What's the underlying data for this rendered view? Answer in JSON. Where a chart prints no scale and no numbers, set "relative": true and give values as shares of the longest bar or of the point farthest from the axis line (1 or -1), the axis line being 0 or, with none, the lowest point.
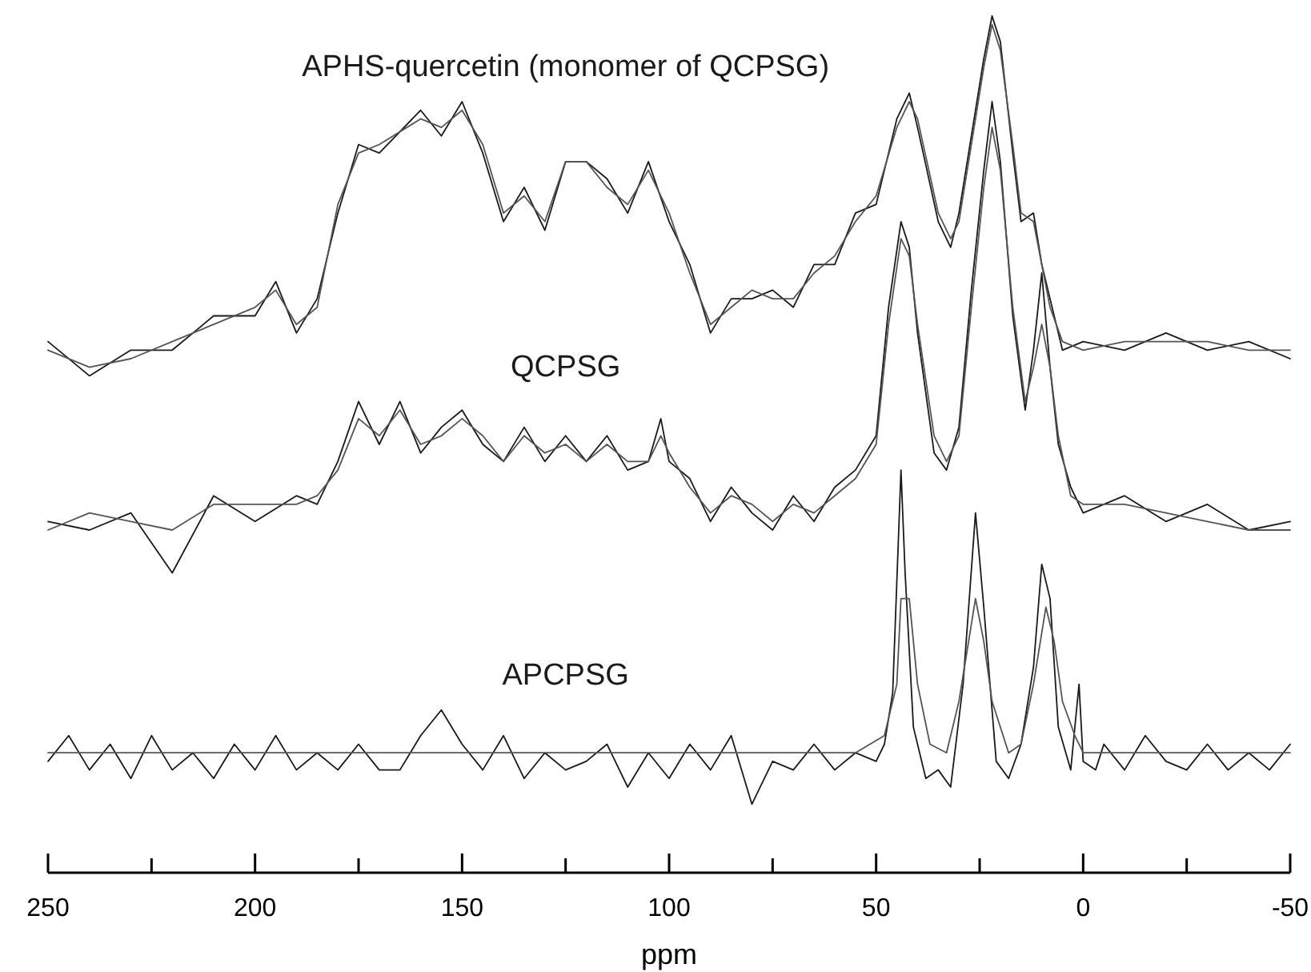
{
  "chart_data": {
    "type": "line",
    "relative": true,
    "xlabel": "ppm",
    "xlim": [
      250,
      -50
    ],
    "xticks": [
      250,
      {
        "value": 225,
        "label": null
      },
      200,
      {
        "value": 175,
        "label": null
      },
      150,
      {
        "value": 125,
        "label": null
      },
      100,
      {
        "value": 75,
        "label": null
      },
      50,
      {
        "value": 25,
        "label": null
      },
      0,
      {
        "value": -25,
        "label": null
      },
      -50
    ],
    "series": [
      {
        "name": "APHS-quercetin (monomer of QCPSG)",
        "color": "#1a1a1a",
        "x": [
          250,
          240,
          230,
          220,
          210,
          200,
          195,
          190,
          185,
          180,
          175,
          170,
          160,
          155,
          150,
          145,
          140,
          135,
          130,
          125,
          120,
          115,
          110,
          105,
          100,
          95,
          90,
          85,
          80,
          75,
          70,
          65,
          60,
          55,
          50,
          45,
          42,
          40,
          35,
          32,
          30,
          27,
          24,
          22,
          20,
          17,
          15,
          12,
          10,
          8,
          5,
          0,
          -10,
          -20,
          -30,
          -40,
          -50
        ],
        "values": [
          0.62,
          0.58,
          0.61,
          0.61,
          0.65,
          0.65,
          0.69,
          0.63,
          0.67,
          0.77,
          0.85,
          0.84,
          0.89,
          0.86,
          0.9,
          0.84,
          0.76,
          0.8,
          0.75,
          0.83,
          0.83,
          0.81,
          0.77,
          0.83,
          0.76,
          0.71,
          0.63,
          0.67,
          0.67,
          0.68,
          0.66,
          0.71,
          0.71,
          0.77,
          0.78,
          0.88,
          0.91,
          0.87,
          0.76,
          0.73,
          0.77,
          0.86,
          0.95,
          1.0,
          0.97,
          0.84,
          0.76,
          0.77,
          0.71,
          0.67,
          0.61,
          0.62,
          0.61,
          0.63,
          0.61,
          0.62,
          0.6
        ]
      },
      {
        "color": "#555555",
        "x": [
          250,
          240,
          230,
          220,
          210,
          200,
          195,
          190,
          185,
          180,
          175,
          170,
          160,
          155,
          150,
          145,
          140,
          135,
          130,
          125,
          120,
          115,
          110,
          105,
          100,
          95,
          90,
          85,
          80,
          75,
          70,
          65,
          60,
          55,
          50,
          45,
          42,
          40,
          35,
          32,
          30,
          27,
          24,
          22,
          20,
          17,
          15,
          12,
          10,
          8,
          5,
          0,
          -10,
          -20,
          -30,
          -40,
          -50
        ],
        "values": [
          0.61,
          0.59,
          0.6,
          0.62,
          0.64,
          0.66,
          0.68,
          0.64,
          0.66,
          0.78,
          0.84,
          0.85,
          0.88,
          0.87,
          0.89,
          0.85,
          0.77,
          0.79,
          0.76,
          0.83,
          0.83,
          0.8,
          0.78,
          0.82,
          0.77,
          0.7,
          0.64,
          0.66,
          0.68,
          0.67,
          0.67,
          0.7,
          0.72,
          0.76,
          0.79,
          0.87,
          0.9,
          0.88,
          0.77,
          0.74,
          0.76,
          0.85,
          0.94,
          0.99,
          0.96,
          0.85,
          0.77,
          0.76,
          0.71,
          0.66,
          0.62,
          0.61,
          0.62,
          0.62,
          0.62,
          0.61,
          0.61
        ]
      },
      {
        "name": "QCPSG",
        "color": "#1a1a1a",
        "x": [
          250,
          240,
          230,
          220,
          210,
          200,
          190,
          185,
          180,
          175,
          170,
          165,
          160,
          155,
          150,
          145,
          140,
          135,
          130,
          125,
          120,
          115,
          110,
          105,
          102,
          100,
          95,
          90,
          85,
          80,
          75,
          70,
          65,
          60,
          55,
          50,
          47,
          44,
          42,
          40,
          36,
          33,
          30,
          27,
          24,
          22,
          20,
          17,
          14,
          12,
          10,
          8,
          6,
          3,
          0,
          -10,
          -20,
          -30,
          -40,
          -50
        ],
        "values": [
          0.41,
          0.4,
          0.42,
          0.35,
          0.44,
          0.41,
          0.44,
          0.43,
          0.48,
          0.55,
          0.5,
          0.55,
          0.49,
          0.52,
          0.54,
          0.5,
          0.48,
          0.52,
          0.48,
          0.51,
          0.48,
          0.51,
          0.47,
          0.48,
          0.53,
          0.48,
          0.46,
          0.41,
          0.45,
          0.42,
          0.4,
          0.44,
          0.41,
          0.45,
          0.47,
          0.51,
          0.66,
          0.76,
          0.73,
          0.63,
          0.49,
          0.47,
          0.52,
          0.68,
          0.82,
          0.9,
          0.83,
          0.65,
          0.54,
          0.61,
          0.7,
          0.59,
          0.5,
          0.45,
          0.42,
          0.44,
          0.41,
          0.43,
          0.4,
          0.41
        ]
      },
      {
        "color": "#555555",
        "x": [
          250,
          240,
          230,
          220,
          210,
          200,
          190,
          185,
          180,
          175,
          170,
          165,
          160,
          155,
          150,
          145,
          140,
          135,
          130,
          125,
          120,
          115,
          110,
          105,
          102,
          100,
          95,
          90,
          85,
          80,
          75,
          70,
          65,
          60,
          55,
          50,
          47,
          44,
          42,
          40,
          36,
          33,
          30,
          27,
          24,
          22,
          20,
          17,
          14,
          12,
          10,
          8,
          6,
          3,
          0,
          -10,
          -20,
          -30,
          -40,
          -50
        ],
        "values": [
          0.4,
          0.42,
          0.41,
          0.4,
          0.43,
          0.43,
          0.43,
          0.44,
          0.47,
          0.53,
          0.51,
          0.54,
          0.5,
          0.51,
          0.53,
          0.51,
          0.48,
          0.51,
          0.49,
          0.5,
          0.48,
          0.5,
          0.48,
          0.48,
          0.51,
          0.49,
          0.45,
          0.42,
          0.44,
          0.43,
          0.41,
          0.43,
          0.42,
          0.44,
          0.46,
          0.5,
          0.64,
          0.74,
          0.72,
          0.64,
          0.51,
          0.48,
          0.51,
          0.66,
          0.8,
          0.87,
          0.82,
          0.66,
          0.55,
          0.59,
          0.64,
          0.59,
          0.51,
          0.44,
          0.43,
          0.43,
          0.42,
          0.41,
          0.4,
          0.4
        ]
      },
      {
        "name": "APCPSG",
        "color": "#1a1a1a",
        "x": [
          250,
          245,
          240,
          235,
          230,
          225,
          220,
          215,
          210,
          205,
          200,
          195,
          190,
          185,
          180,
          175,
          170,
          165,
          160,
          155,
          150,
          145,
          140,
          135,
          130,
          125,
          120,
          115,
          110,
          105,
          100,
          95,
          90,
          85,
          80,
          75,
          70,
          65,
          60,
          55,
          50,
          48,
          46,
          44,
          43,
          41,
          38,
          35,
          32,
          29,
          26,
          24,
          21,
          18,
          15,
          12,
          10,
          8,
          6,
          3,
          1,
          0,
          -3,
          -5,
          -10,
          -15,
          -20,
          -25,
          -30,
          -35,
          -40,
          -45,
          -50
        ],
        "values": [
          0.13,
          0.16,
          0.12,
          0.15,
          0.11,
          0.16,
          0.12,
          0.14,
          0.11,
          0.15,
          0.12,
          0.16,
          0.12,
          0.14,
          0.12,
          0.15,
          0.12,
          0.12,
          0.16,
          0.19,
          0.15,
          0.12,
          0.16,
          0.11,
          0.14,
          0.12,
          0.13,
          0.15,
          0.1,
          0.14,
          0.11,
          0.15,
          0.12,
          0.16,
          0.08,
          0.13,
          0.12,
          0.15,
          0.12,
          0.14,
          0.13,
          0.15,
          0.21,
          0.47,
          0.35,
          0.17,
          0.11,
          0.12,
          0.1,
          0.22,
          0.42,
          0.31,
          0.13,
          0.11,
          0.15,
          0.24,
          0.36,
          0.32,
          0.17,
          0.12,
          0.22,
          0.13,
          0.12,
          0.15,
          0.12,
          0.16,
          0.13,
          0.12,
          0.15,
          0.12,
          0.14,
          0.12,
          0.15
        ]
      },
      {
        "color": "#555555",
        "x": [
          250,
          230,
          210,
          190,
          170,
          160,
          150,
          130,
          110,
          100,
          90,
          70,
          55,
          48,
          45,
          44,
          42,
          40,
          37,
          33,
          30,
          26,
          24,
          22,
          18,
          15,
          12,
          9,
          7,
          5,
          2,
          0,
          -10,
          -25,
          -40,
          -50
        ],
        "values": [
          0.14,
          0.14,
          0.14,
          0.14,
          0.14,
          0.14,
          0.14,
          0.14,
          0.14,
          0.14,
          0.14,
          0.14,
          0.14,
          0.16,
          0.22,
          0.32,
          0.32,
          0.22,
          0.15,
          0.14,
          0.2,
          0.32,
          0.27,
          0.2,
          0.14,
          0.15,
          0.22,
          0.31,
          0.27,
          0.2,
          0.16,
          0.14,
          0.14,
          0.14,
          0.14,
          0.14
        ]
      }
    ]
  }
}
